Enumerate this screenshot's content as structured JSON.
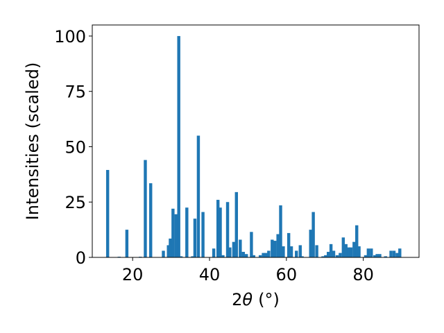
{
  "chart_data": {
    "type": "bar",
    "title": "",
    "xlabel": "2θ (°)",
    "xlabel_parts": {
      "prefix": "2",
      "symbol": "θ",
      "unit": "(°)"
    },
    "ylabel": "Intensities (scaled)",
    "xlim": [
      9.5,
      94.5
    ],
    "ylim": [
      0,
      105
    ],
    "xticks": [
      20,
      40,
      60,
      80
    ],
    "yticks": [
      0,
      25,
      50,
      75,
      100
    ],
    "grid": false,
    "bar_width_deg": 0.8,
    "color": "#1f77b4",
    "series": [
      {
        "x": [
          13.5,
          16.5,
          18.5,
          22.0,
          23.3,
          24.7,
          28.0,
          29.3,
          29.8,
          30.5,
          31.3,
          32.0,
          32.6,
          34.1,
          35.6,
          36.2,
          37.1,
          38.3,
          41.1,
          42.2,
          42.8,
          43.5,
          44.7,
          45.3,
          46.3,
          47.0,
          48.0,
          48.8,
          49.6,
          50.9,
          51.5,
          53.2,
          54.0,
          54.7,
          55.4,
          56.3,
          57.0,
          57.8,
          58.5,
          59.2,
          60.6,
          61.3,
          62.6,
          63.6,
          64.1,
          66.3,
          67.0,
          67.9,
          69.5,
          70.2,
          70.9,
          71.6,
          72.3,
          73.2,
          74.0,
          74.8,
          75.5,
          76.2,
          76.8,
          77.6,
          78.3,
          78.9,
          80.6,
          81.3,
          82.1,
          83.0,
          83.6,
          84.3,
          85.8,
          87.2,
          88.0,
          88.8,
          89.5
        ],
        "values": [
          39.5,
          0.3,
          12.5,
          0.3,
          44,
          33.5,
          3,
          5.5,
          8.5,
          22,
          19.5,
          100,
          0.5,
          22.5,
          0.5,
          17.5,
          55,
          20.5,
          4,
          26,
          22.5,
          1,
          25,
          4.5,
          7,
          29.5,
          8,
          2.5,
          1.5,
          11.5,
          1,
          1,
          2,
          2,
          3,
          8,
          7.5,
          10.5,
          23.5,
          5,
          11,
          5,
          3,
          5.5,
          0.5,
          12.5,
          20.5,
          5.5,
          0.5,
          1,
          2.5,
          6,
          3,
          1,
          2,
          9,
          6,
          4.5,
          4.5,
          7,
          14.5,
          5,
          1,
          4,
          4,
          1,
          1.5,
          1.5,
          0.5,
          3,
          3,
          2,
          4
        ]
      }
    ]
  }
}
